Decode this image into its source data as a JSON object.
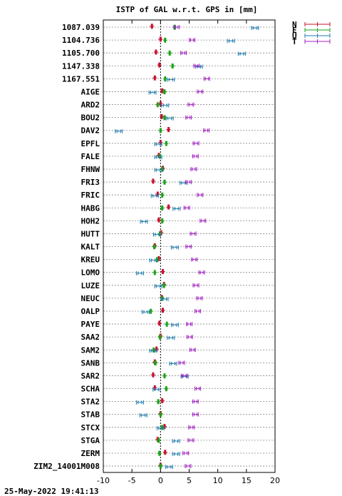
{
  "chart_data": {
    "type": "scatter",
    "title": "ISTP of GAL w.r.t. GPS in [mm]",
    "xlim": [
      -10,
      20
    ],
    "x_ticks": [
      "-10",
      "-5",
      "0",
      "5",
      "10",
      "15",
      "20"
    ],
    "x_tick_values": [
      -10,
      -5,
      0,
      5,
      10,
      15,
      20
    ],
    "grid": true,
    "legend_position": "top-right outside",
    "timestamp": "25-May-2022 19:41:13",
    "colors": {
      "N": "#c8102e",
      "E": "#1aa31a",
      "U": "#1f7fb0",
      "T": "#a020c0"
    },
    "series": [
      {
        "name": "N",
        "key": "N"
      },
      {
        "name": "E",
        "key": "E"
      },
      {
        "name": "U",
        "key": "U"
      },
      {
        "name": "T",
        "key": "T"
      }
    ],
    "stations": [
      {
        "name": "1087.039",
        "N": -1.5,
        "E": 2.5,
        "U": 16.5,
        "T": 2.8
      },
      {
        "name": "1104.736",
        "N": 0.0,
        "E": 0.8,
        "U": 12.3,
        "T": 5.5
      },
      {
        "name": "1105.700",
        "N": -0.8,
        "E": 1.6,
        "U": 14.2,
        "T": 4.0
      },
      {
        "name": "1147.338",
        "N": -0.2,
        "E": 2.1,
        "U": 6.7,
        "T": 6.3
      },
      {
        "name": "1167.551",
        "N": -1.0,
        "E": 0.8,
        "U": 1.8,
        "T": 8.1
      },
      {
        "name": "AIGE",
        "N": 0.3,
        "E": 0.7,
        "U": -1.4,
        "T": 6.9
      },
      {
        "name": "ARD2",
        "N": 0.0,
        "E": -0.5,
        "U": 0.8,
        "T": 5.3
      },
      {
        "name": "BOU2",
        "N": 0.2,
        "E": 0.7,
        "U": 1.6,
        "T": 4.9
      },
      {
        "name": "DAV2",
        "N": 1.4,
        "E": 0.0,
        "U": -7.3,
        "T": 8.0
      },
      {
        "name": "EPFL",
        "N": 0.0,
        "E": 1.0,
        "U": -0.4,
        "T": 6.2
      },
      {
        "name": "FALE",
        "N": -0.3,
        "E": -0.1,
        "U": -0.4,
        "T": 6.1
      },
      {
        "name": "FHNW",
        "N": 0.4,
        "E": 0.3,
        "U": -0.4,
        "T": 5.8
      },
      {
        "name": "FRI3",
        "N": -1.3,
        "E": 0.7,
        "U": 4.0,
        "T": 4.9
      },
      {
        "name": "FRIC",
        "N": -0.5,
        "E": 0.3,
        "U": -1.0,
        "T": 6.9
      },
      {
        "name": "HABG",
        "N": 1.4,
        "E": 0.3,
        "U": 2.8,
        "T": 4.6
      },
      {
        "name": "HOH2",
        "N": -0.3,
        "E": 0.3,
        "U": -2.9,
        "T": 7.4
      },
      {
        "name": "HUTT",
        "N": 0.1,
        "E": -0.1,
        "U": -0.6,
        "T": 5.7
      },
      {
        "name": "KALT",
        "N": -1.0,
        "E": -1.1,
        "U": 2.5,
        "T": 4.9
      },
      {
        "name": "KREU",
        "N": -0.3,
        "E": -0.6,
        "U": -1.3,
        "T": 5.9
      },
      {
        "name": "LOMO",
        "N": 0.4,
        "E": -1.0,
        "U": -3.6,
        "T": 7.2
      },
      {
        "name": "LUZE",
        "N": 0.6,
        "E": 0.6,
        "U": -0.4,
        "T": 6.2
      },
      {
        "name": "NEUC",
        "N": 0.2,
        "E": 0.3,
        "U": 0.7,
        "T": 6.8
      },
      {
        "name": "OALP",
        "N": 0.4,
        "E": -1.7,
        "U": -2.6,
        "T": 6.5
      },
      {
        "name": "PAYE",
        "N": -0.2,
        "E": 1.1,
        "U": 2.5,
        "T": 5.0
      },
      {
        "name": "SAA2",
        "N": 0.0,
        "E": -0.1,
        "U": 1.8,
        "T": 5.1
      },
      {
        "name": "SAM2",
        "N": -0.7,
        "E": -1.2,
        "U": -1.3,
        "T": 5.6
      },
      {
        "name": "SANB",
        "N": -1.0,
        "E": -0.9,
        "U": 2.2,
        "T": 3.7
      },
      {
        "name": "SAR2",
        "N": -1.3,
        "E": 0.7,
        "U": 4.2,
        "T": 4.2
      },
      {
        "name": "SCHA",
        "N": -1.0,
        "E": 1.0,
        "U": -0.7,
        "T": 6.5
      },
      {
        "name": "STA2",
        "N": 0.3,
        "E": -0.4,
        "U": -3.6,
        "T": 6.1
      },
      {
        "name": "STAB",
        "N": 0.0,
        "E": 0.0,
        "U": -3.0,
        "T": 6.1
      },
      {
        "name": "STCX",
        "N": 0.7,
        "E": 0.3,
        "U": 0.0,
        "T": 5.4
      },
      {
        "name": "STGA",
        "N": -0.5,
        "E": -0.3,
        "U": 2.7,
        "T": 5.3
      },
      {
        "name": "ZERM",
        "N": 0.8,
        "E": -0.2,
        "U": 2.7,
        "T": 4.4
      },
      {
        "name": "ZIM2_14001M008",
        "N": 0.0,
        "E": 0.0,
        "U": 1.5,
        "T": 4.8
      }
    ]
  }
}
